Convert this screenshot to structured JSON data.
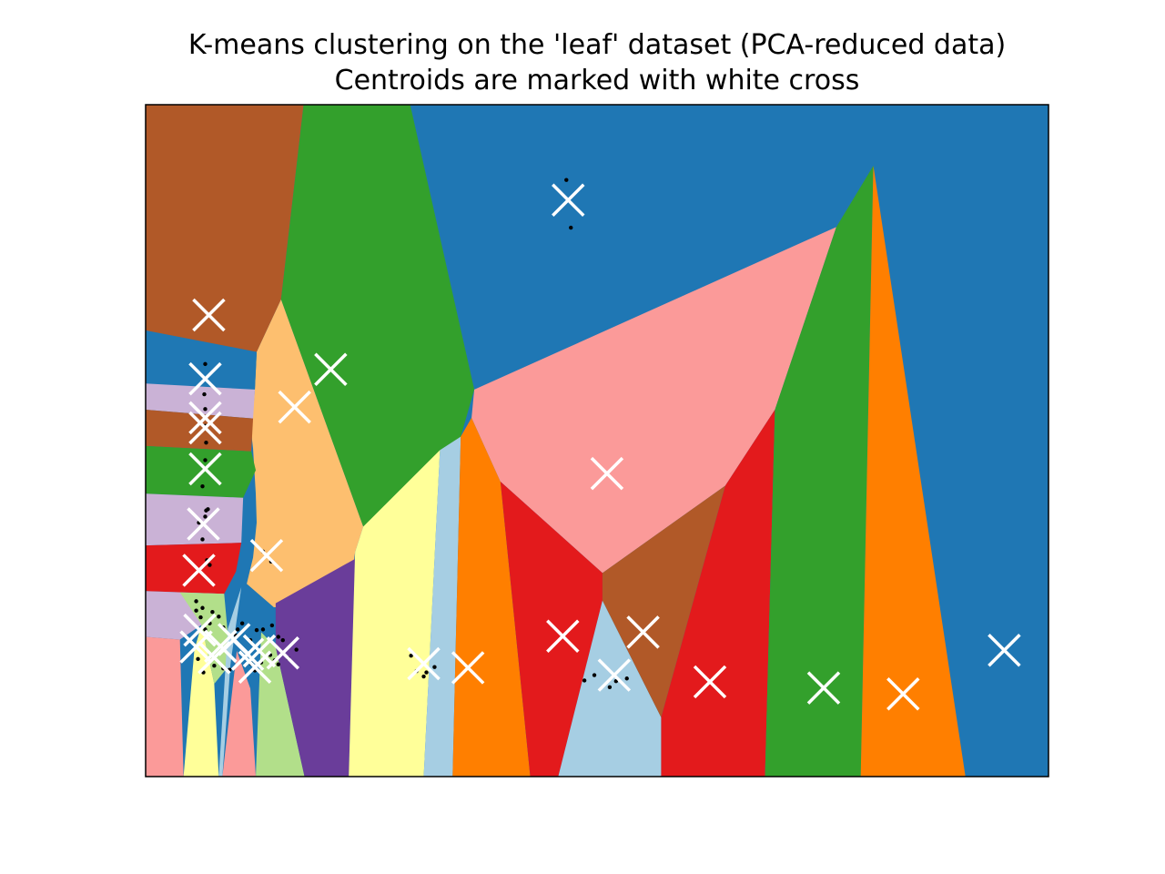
{
  "chart_data": {
    "type": "scatter",
    "title": "K-means clustering on the 'leaf' dataset (PCA-reduced data)",
    "subtitle": "Centroids are marked with white cross",
    "xlabel": "",
    "ylabel": "",
    "xlim": [
      0,
      100
    ],
    "ylim": [
      0,
      100
    ],
    "ticks_visible": false,
    "grid": false,
    "legend": "none",
    "background_color": "#1f77b4",
    "centroid_marker_color": "#ffffff",
    "point_color": "#000000",
    "regions": [
      {
        "color": "#b15928",
        "polygon": [
          [
            0,
            100
          ],
          [
            17.5,
            100
          ],
          [
            15,
            71
          ],
          [
            12.3,
            63.2
          ],
          [
            0,
            66.4
          ]
        ]
      },
      {
        "color": "#33a02c",
        "polygon": [
          [
            17.5,
            100
          ],
          [
            29.3,
            100
          ],
          [
            36.4,
            57.6
          ],
          [
            34.9,
            50.6
          ],
          [
            24.1,
            37.2
          ],
          [
            15,
            71
          ]
        ]
      },
      {
        "color": "#fdbf6f",
        "polygon": [
          [
            15,
            71
          ],
          [
            24.1,
            37.2
          ],
          [
            23.2,
            33.4
          ],
          [
            22.4,
            25.2
          ],
          [
            14.2,
            25.2
          ],
          [
            11.2,
            28.7
          ],
          [
            11.9,
            32.6
          ],
          [
            12.3,
            37.8
          ],
          [
            12.2,
            42.1
          ],
          [
            11.9,
            48.8
          ],
          [
            11.7,
            51.2
          ],
          [
            12.1,
            57.6
          ],
          [
            12.3,
            63.2
          ]
        ]
      },
      {
        "color": "#1f78b4",
        "polygon": [
          [
            0,
            66.4
          ],
          [
            12.3,
            63.2
          ],
          [
            12.1,
            57.6
          ],
          [
            0,
            58.5
          ]
        ]
      },
      {
        "color": "#cab2d6",
        "polygon": [
          [
            0,
            58.5
          ],
          [
            12.1,
            57.6
          ],
          [
            11.9,
            53.3
          ],
          [
            0,
            54.6
          ]
        ]
      },
      {
        "color": "#b15928",
        "polygon": [
          [
            0,
            54.6
          ],
          [
            11.9,
            53.3
          ],
          [
            11.7,
            48.4
          ],
          [
            0,
            49.2
          ]
        ]
      },
      {
        "color": "#33a02c",
        "polygon": [
          [
            0,
            49.2
          ],
          [
            11.7,
            48.4
          ],
          [
            12.2,
            45.6
          ],
          [
            10.8,
            41.5
          ],
          [
            0,
            42.1
          ]
        ]
      },
      {
        "color": "#cab2d6",
        "polygon": [
          [
            0,
            42.1
          ],
          [
            10.8,
            41.5
          ],
          [
            10.6,
            34.8
          ],
          [
            0,
            34.4
          ]
        ]
      },
      {
        "color": "#e31a1c",
        "polygon": [
          [
            0,
            34.4
          ],
          [
            10.6,
            34.8
          ],
          [
            10,
            30.5
          ],
          [
            8.7,
            27.2
          ],
          [
            0,
            27.6
          ]
        ]
      },
      {
        "color": "#cab2d6",
        "polygon": [
          [
            0,
            27.6
          ],
          [
            8.7,
            27.2
          ],
          [
            6.2,
            22.6
          ],
          [
            3.8,
            20.4
          ],
          [
            0,
            20.8
          ]
        ]
      },
      {
        "color": "#fb9a99",
        "polygon": [
          [
            0,
            20.8
          ],
          [
            3.8,
            20.4
          ],
          [
            4.2,
            0
          ],
          [
            0,
            0
          ]
        ]
      },
      {
        "color": "#ffff99",
        "polygon": [
          [
            4.2,
            0
          ],
          [
            8.1,
            0
          ],
          [
            7.6,
            13.8
          ],
          [
            6.2,
            22.6
          ],
          [
            5.4,
            18.9
          ]
        ]
      },
      {
        "color": "#b2df8a",
        "polygon": [
          [
            7.6,
            13.8
          ],
          [
            6.2,
            22.6
          ],
          [
            3.8,
            27.4
          ],
          [
            8.7,
            27.2
          ],
          [
            9.4,
            16.8
          ]
        ]
      },
      {
        "color": "#a6cee3",
        "polygon": [
          [
            8.1,
            0
          ],
          [
            8.5,
            0
          ],
          [
            9.4,
            16.8
          ],
          [
            10.6,
            28.2
          ],
          [
            9.1,
            22
          ]
        ]
      },
      {
        "color": "#fb9a99",
        "polygon": [
          [
            8.5,
            0
          ],
          [
            12.2,
            0
          ],
          [
            11.6,
            13.1
          ],
          [
            10.1,
            18.7
          ]
        ]
      },
      {
        "color": "#b2df8a",
        "polygon": [
          [
            12.2,
            0
          ],
          [
            17.6,
            0
          ],
          [
            14.4,
            19.3
          ],
          [
            12.8,
            21.5
          ]
        ]
      },
      {
        "color": "#6a3d9a",
        "polygon": [
          [
            17.6,
            0
          ],
          [
            22.5,
            0
          ],
          [
            23.2,
            32.4
          ],
          [
            14.4,
            25.8
          ],
          [
            14.4,
            19.3
          ]
        ]
      },
      {
        "color": "#ffff99",
        "polygon": [
          [
            22.5,
            0
          ],
          [
            30.8,
            0
          ],
          [
            32.6,
            48.6
          ],
          [
            24.1,
            37.2
          ],
          [
            23.2,
            33.4
          ]
        ]
      },
      {
        "color": "#a6cee3",
        "polygon": [
          [
            30.8,
            0
          ],
          [
            34,
            0
          ],
          [
            34.9,
            50.6
          ],
          [
            32.6,
            48.6
          ]
        ]
      },
      {
        "color": "#ff7f00",
        "polygon": [
          [
            34,
            0
          ],
          [
            42.6,
            0
          ],
          [
            39.3,
            43.9
          ],
          [
            36.1,
            53.4
          ],
          [
            34.9,
            50.6
          ]
        ]
      },
      {
        "color": "#fb9a99",
        "polygon": [
          [
            36.4,
            57.6
          ],
          [
            76.5,
            81.8
          ],
          [
            69.7,
            54.6
          ],
          [
            64.2,
            43.3
          ],
          [
            50.6,
            30.3
          ],
          [
            39.3,
            43.9
          ],
          [
            36.1,
            53.4
          ]
        ]
      },
      {
        "color": "#e31a1c",
        "polygon": [
          [
            42.6,
            0
          ],
          [
            45.7,
            0
          ],
          [
            50.6,
            26.2
          ],
          [
            50.6,
            30.3
          ],
          [
            39.3,
            43.9
          ]
        ]
      },
      {
        "color": "#a6cee3",
        "polygon": [
          [
            45.7,
            0
          ],
          [
            57.1,
            0
          ],
          [
            57.1,
            8.8
          ],
          [
            50.6,
            26.2
          ]
        ]
      },
      {
        "color": "#b15928",
        "polygon": [
          [
            50.6,
            30.3
          ],
          [
            64.2,
            43.3
          ],
          [
            57.1,
            8.8
          ],
          [
            50.6,
            26.2
          ]
        ]
      },
      {
        "color": "#e31a1c",
        "polygon": [
          [
            57.1,
            0
          ],
          [
            68.6,
            0
          ],
          [
            69.7,
            54.6
          ],
          [
            64.2,
            43.3
          ],
          [
            57.1,
            8.8
          ]
        ]
      },
      {
        "color": "#33a02c",
        "polygon": [
          [
            68.6,
            0
          ],
          [
            79.2,
            0
          ],
          [
            80.6,
            90.9
          ],
          [
            76.5,
            81.8
          ],
          [
            69.7,
            54.6
          ]
        ]
      },
      {
        "color": "#ff7f00",
        "polygon": [
          [
            79.2,
            0
          ],
          [
            90.8,
            0
          ],
          [
            80.6,
            90.9
          ]
        ]
      }
    ],
    "centroids": {
      "x": [
        46.8,
        7.0,
        6.6,
        20.5,
        16.5,
        6.6,
        6.6,
        6.6,
        51.1,
        6.4,
        13.4,
        5.9,
        55.1,
        46.2,
        75.1,
        83.9,
        62.5,
        51.9,
        35.7,
        30.8,
        95.1,
        5.6,
        8.3,
        6.0,
        7.6,
        11.3,
        9.8,
        12.1,
        15.2,
        12.6
      ],
      "y": [
        85.8,
        68.7,
        59.2,
        60.6,
        55.0,
        53.4,
        51.9,
        45.8,
        45.1,
        37.6,
        32.9,
        30.7,
        21.5,
        20.9,
        13.2,
        12.3,
        14.1,
        15.1,
        16.2,
        16.8,
        18.8,
        19.3,
        19.4,
        21.8,
        17.7,
        18.2,
        20.4,
        16.3,
        18.4,
        18.7
      ]
    },
    "points": {
      "x": [
        46.6,
        47.1,
        6.6,
        6.5,
        6.6,
        6.6,
        6.7,
        6.6,
        6.3,
        6.6,
        6.7,
        6.9,
        5.9,
        6.3,
        6.8,
        7.1,
        5.6,
        5.6,
        6.1,
        6.3,
        6.6,
        7.1,
        7.4,
        8.1,
        8.6,
        10.2,
        10.7,
        10.0,
        11.6,
        12.3,
        13.0,
        14.0,
        14.7,
        15.2,
        16.7,
        15.8,
        14.7,
        14.3,
        13.8,
        12.8,
        12.1,
        11.7,
        9.3,
        8.6,
        7.6,
        6.4,
        5.8,
        29.4,
        30.0,
        30.8,
        31.1,
        32.0,
        48.6,
        49.7,
        51.4,
        52.1,
        53.3,
        13.0,
        13.9
      ],
      "y": [
        88.8,
        81.7,
        61.4,
        56.9,
        54.7,
        52.2,
        49.7,
        47.1,
        43.2,
        38.7,
        39.6,
        39.8,
        37.8,
        35.3,
        32.2,
        31.5,
        26.1,
        24.7,
        23.7,
        25.1,
        21.9,
        22.8,
        24.5,
        23.8,
        22.2,
        21.9,
        22.8,
        21.0,
        20.3,
        21.8,
        21.9,
        22.5,
        20.8,
        20.3,
        18.9,
        17.6,
        16.7,
        17.3,
        18.1,
        17.0,
        15.8,
        16.8,
        15.9,
        16.1,
        16.5,
        15.5,
        17.5,
        18.0,
        15.7,
        14.9,
        15.5,
        16.3,
        14.3,
        15.1,
        13.3,
        14.2,
        14.6,
        33.5,
        32.0
      ]
    }
  }
}
